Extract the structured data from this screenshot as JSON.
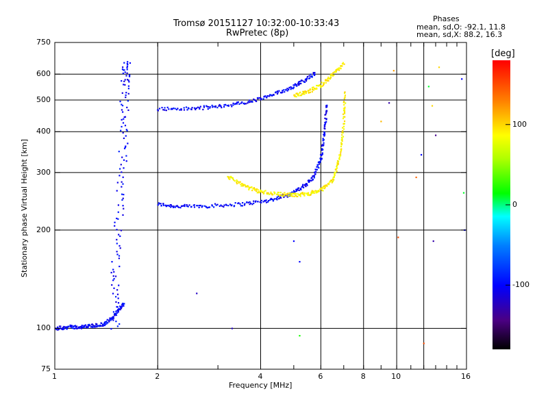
{
  "chart_data": {
    "type": "scatter",
    "title": "Tromsø 20151127 10:32:00-10:33:43",
    "subtitle": "RwPretec (8p)",
    "xlabel": "Frequency [MHz]",
    "ylabel": "Stationary phase Virtual Height [km]",
    "x_scale": "log",
    "y_scale": "log",
    "xlim": [
      1,
      16
    ],
    "ylim": [
      75,
      750
    ],
    "x_ticks": [
      "1",
      "2",
      "4",
      "6",
      "8",
      "10",
      "16"
    ],
    "x_gridlines": [
      2,
      4,
      6,
      8,
      10,
      12
    ],
    "y_ticks": [
      "750",
      "600",
      "500",
      "400",
      "300",
      "200",
      "100",
      "75"
    ],
    "y_gridlines": [
      100,
      200,
      300,
      400,
      500,
      600
    ],
    "grid": true,
    "stats": {
      "heading": "Phases",
      "line_o": "mean, sd,O: -92.1, 11.8",
      "line_x": "mean, sd,X:  88.2, 16.3"
    },
    "colorbar": {
      "label": "[deg]",
      "range": [
        -180,
        180
      ],
      "ticks": [
        "100",
        "0",
        "-100"
      ],
      "tick_values": [
        100,
        0,
        -100
      ]
    },
    "traces": [
      {
        "kind": "O-mode F layer lower",
        "phase": -100,
        "x": [
          2.0,
          2.3,
          2.8,
          3.5,
          4.2,
          4.8,
          5.3,
          5.7,
          6.0,
          6.15,
          6.25
        ],
        "y": [
          240,
          236,
          237,
          240,
          246,
          256,
          270,
          290,
          330,
          400,
          490
        ]
      },
      {
        "kind": "O-mode F layer upper",
        "phase": -100,
        "x": [
          2.0,
          2.5,
          3.0,
          3.6,
          4.2,
          4.8,
          5.3,
          5.8
        ],
        "y": [
          470,
          470,
          478,
          490,
          512,
          540,
          570,
          605
        ]
      },
      {
        "kind": "X-mode F layer lower",
        "phase": 90,
        "x": [
          3.2,
          3.6,
          4.0,
          4.5,
          5.0,
          5.5,
          6.0,
          6.5,
          6.8,
          7.0,
          7.05
        ],
        "y": [
          292,
          272,
          262,
          258,
          256,
          258,
          265,
          285,
          330,
          420,
          530
        ]
      },
      {
        "kind": "X-mode F layer upper",
        "phase": 90,
        "x": [
          5.0,
          5.5,
          6.0,
          6.5,
          7.0
        ],
        "y": [
          515,
          530,
          555,
          595,
          650
        ]
      },
      {
        "kind": "O-mode E/Es column",
        "phase": -100,
        "x": [
          1.5,
          1.5,
          1.55,
          1.6,
          1.6,
          1.62
        ],
        "y": [
          100,
          150,
          250,
          400,
          560,
          660
        ]
      },
      {
        "kind": "O-mode lower tail",
        "phase": -100,
        "x": [
          1.0,
          1.1,
          1.2,
          1.3,
          1.4,
          1.5,
          1.6
        ],
        "y": [
          100,
          101,
          101,
          102,
          103,
          110,
          120
        ]
      }
    ],
    "scattered_points": [
      {
        "x": 2.6,
        "y": 128,
        "phase": -120
      },
      {
        "x": 3.3,
        "y": 100,
        "phase": -120
      },
      {
        "x": 5.0,
        "y": 185,
        "phase": -100
      },
      {
        "x": 5.2,
        "y": 160,
        "phase": -100
      },
      {
        "x": 5.2,
        "y": 95,
        "phase": 20
      },
      {
        "x": 9.5,
        "y": 490,
        "phase": -130
      },
      {
        "x": 9.8,
        "y": 615,
        "phase": 120
      },
      {
        "x": 10.1,
        "y": 190,
        "phase": 150
      },
      {
        "x": 11.4,
        "y": 290,
        "phase": 140
      },
      {
        "x": 11.8,
        "y": 340,
        "phase": -100
      },
      {
        "x": 12.0,
        "y": 90,
        "phase": 150
      },
      {
        "x": 12.4,
        "y": 550,
        "phase": 10
      },
      {
        "x": 12.7,
        "y": 480,
        "phase": 100
      },
      {
        "x": 13.0,
        "y": 390,
        "phase": -140
      },
      {
        "x": 12.8,
        "y": 185,
        "phase": -130
      },
      {
        "x": 13.3,
        "y": 630,
        "phase": 100
      },
      {
        "x": 15.5,
        "y": 580,
        "phase": -100
      },
      {
        "x": 15.7,
        "y": 260,
        "phase": 10
      },
      {
        "x": 15.8,
        "y": 200,
        "phase": -100
      },
      {
        "x": 9.0,
        "y": 430,
        "phase": 110
      }
    ]
  }
}
